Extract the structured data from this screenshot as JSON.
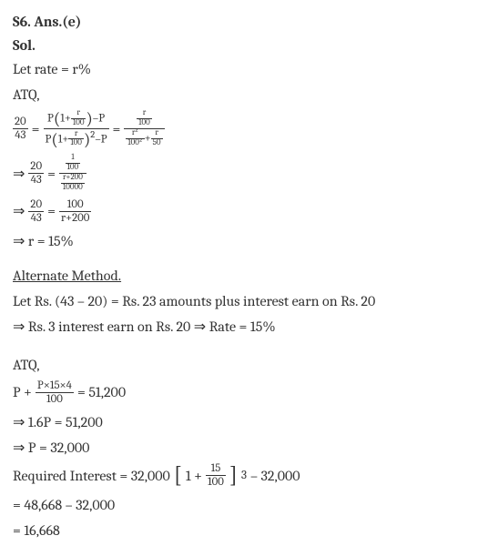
{
  "header": {
    "q": "S6. Ans.(e)",
    "sol": "Sol."
  },
  "line_let": "Let rate = r%",
  "atq": "ATQ,",
  "eq1": {
    "lhs_num": "20",
    "lhs_den": "43",
    "mid_num_a": "P",
    "mid_num_inner_num": "r",
    "mid_num_inner_den": "100",
    "mid_num_tail": "–P",
    "mid_den_a": "P",
    "mid_den_inner_num": "r",
    "mid_den_inner_den": "100",
    "mid_den_exp": "2",
    "mid_den_tail": "–P",
    "rhs_top_num": "r",
    "rhs_top_den": "100",
    "rhs_bot_t1_num": "r²",
    "rhs_bot_t1_den": "100²",
    "rhs_bot_plus": "+",
    "rhs_bot_t2_num": "r",
    "rhs_bot_t2_den": "50"
  },
  "eq2": {
    "arrow": "⇒",
    "lhs_num": "20",
    "lhs_den": "43",
    "rhs_top_num": "1",
    "rhs_top_den": "100",
    "rhs_bot_num": "r+200",
    "rhs_bot_den": "10000"
  },
  "eq3": {
    "arrow": "⇒",
    "lhs_num": "20",
    "lhs_den": "43",
    "rhs_num": "100",
    "rhs_den": "r+200"
  },
  "eq4": "⇒ r = 15%",
  "alt_title": "Alternate Method.",
  "alt_l1": "Let Rs. (43 – 20) = Rs. 23 amounts plus interest earn on Rs. 20",
  "alt_l2": "⇒ Rs. 3 interest earn on Rs. 20 ⇒ Rate = 15%",
  "atq2": "ATQ,",
  "eq5": {
    "pre": "P +",
    "num": "P×15×4",
    "den": "100",
    "post": "= 51,200"
  },
  "eq6": "⇒ 1.6P = 51,200",
  "eq7": "⇒ P = 32,000",
  "eq8": {
    "pre": "Required Interest = 32,000",
    "inner_pre": "1 +",
    "inner_num": "15",
    "inner_den": "100",
    "exp": "3",
    "post": "– 32,000"
  },
  "eq9": "= 48,668 – 32,000",
  "eq10": "= 16,668",
  "colors": {
    "text": "#333333",
    "bg": "#ffffff"
  }
}
